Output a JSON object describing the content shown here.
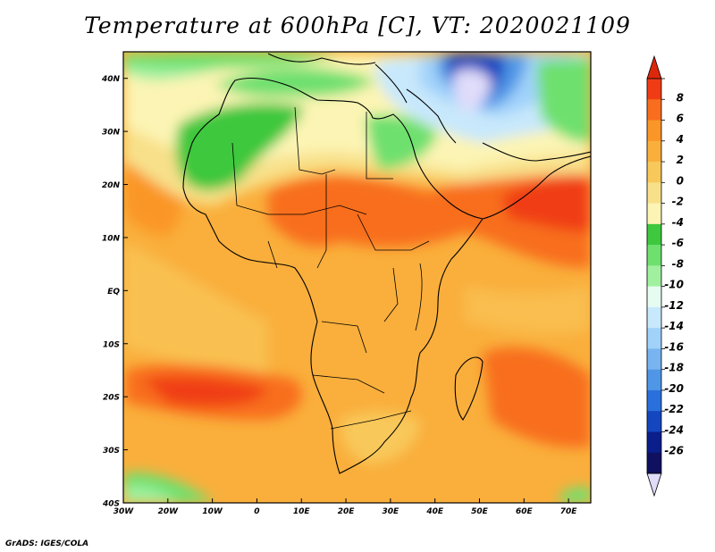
{
  "title": "Temperature at 600hPa [C], VT: 2020021109",
  "footer": "GrADS: IGES/COLA",
  "map": {
    "lon_range": [
      -30,
      75
    ],
    "lat_range": [
      -40,
      45
    ],
    "lon_ticks": [
      {
        "value": -30,
        "label": "30W"
      },
      {
        "value": -20,
        "label": "20W"
      },
      {
        "value": -10,
        "label": "10W"
      },
      {
        "value": 0,
        "label": "0"
      },
      {
        "value": 10,
        "label": "10E"
      },
      {
        "value": 20,
        "label": "20E"
      },
      {
        "value": 30,
        "label": "30E"
      },
      {
        "value": 40,
        "label": "40E"
      },
      {
        "value": 50,
        "label": "50E"
      },
      {
        "value": 60,
        "label": "60E"
      },
      {
        "value": 70,
        "label": "70E"
      }
    ],
    "lat_ticks": [
      {
        "value": 40,
        "label": "40N"
      },
      {
        "value": 30,
        "label": "30N"
      },
      {
        "value": 20,
        "label": "20N"
      },
      {
        "value": 10,
        "label": "10N"
      },
      {
        "value": 0,
        "label": "EQ"
      },
      {
        "value": -10,
        "label": "10S"
      },
      {
        "value": -20,
        "label": "20S"
      },
      {
        "value": -30,
        "label": "30S"
      },
      {
        "value": -40,
        "label": "40S"
      }
    ]
  },
  "colorbar": {
    "labels": [
      "8",
      "6",
      "4",
      "2",
      "0",
      "-2",
      "-4",
      "-6",
      "-8",
      "-10",
      "-12",
      "-14",
      "-16",
      "-18",
      "-20",
      "-22",
      "-24",
      "-26"
    ],
    "colors": [
      "#f03c14",
      "#f86e1e",
      "#fa9628",
      "#faaf3c",
      "#f8c85a",
      "#f8e08a",
      "#fcf4b4",
      "#3ec83e",
      "#6ee06e",
      "#a0f0a0",
      "#e6fcf0",
      "#c8e8fc",
      "#a0d2fa",
      "#78b4f0",
      "#5096e6",
      "#2a70dc",
      "#1446c0",
      "#0a1e8c",
      "#101060"
    ],
    "top_color": "#dc280a",
    "bottom_color": "#e0dcfa"
  }
}
